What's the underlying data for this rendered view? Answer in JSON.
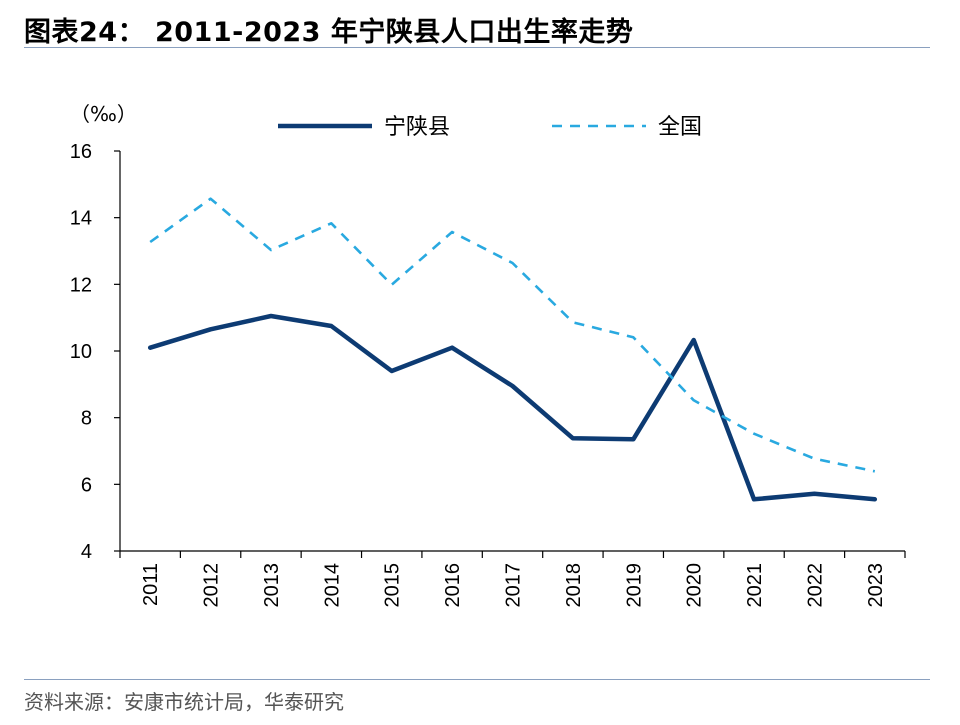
{
  "header": {
    "title": "图表24：  2011-2023 年宁陕县人口出生率走势"
  },
  "footer": {
    "source": "资料来源：安康市统计局，华泰研究"
  },
  "chart_data": {
    "type": "line",
    "unit": "（‰）",
    "categories": [
      "2011",
      "2012",
      "2013",
      "2014",
      "2015",
      "2016",
      "2017",
      "2018",
      "2019",
      "2020",
      "2021",
      "2022",
      "2023"
    ],
    "ylim": [
      4,
      16
    ],
    "yticks": [
      4,
      6,
      8,
      10,
      12,
      14,
      16
    ],
    "grid": false,
    "legend_position": "top",
    "series": [
      {
        "name": "宁陕县",
        "style": "solid",
        "color": "#0d3b73",
        "values": [
          10.1,
          10.65,
          11.05,
          10.75,
          9.4,
          10.1,
          8.95,
          7.38,
          7.35,
          10.33,
          5.55,
          5.72,
          5.55
        ]
      },
      {
        "name": "全国",
        "style": "dashed",
        "color": "#29a9e0",
        "values": [
          13.27,
          14.57,
          13.03,
          13.83,
          11.99,
          13.57,
          12.64,
          10.86,
          10.41,
          8.52,
          7.52,
          6.77,
          6.39
        ]
      }
    ]
  }
}
